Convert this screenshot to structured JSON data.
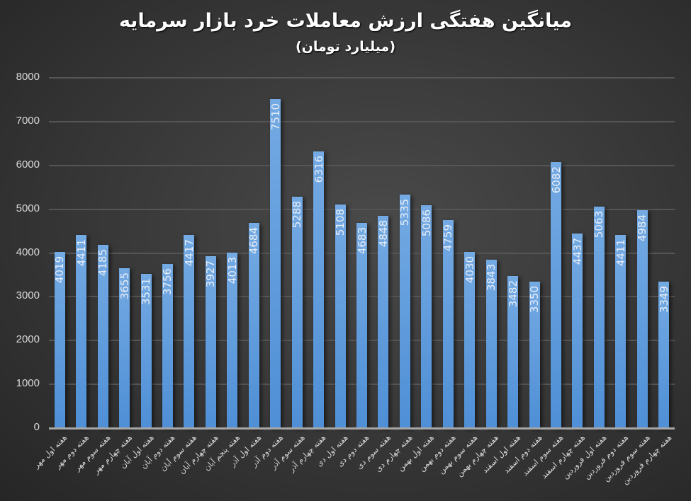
{
  "chart_data": {
    "type": "bar",
    "title": "میانگین هفتگی ارزش معاملات خرد بازار سرمایه",
    "subtitle": "(میلیارد تومان)",
    "xlabel": "",
    "ylabel": "",
    "ylim": [
      0,
      8000
    ],
    "yticks": [
      0,
      1000,
      2000,
      3000,
      4000,
      5000,
      6000,
      7000,
      8000
    ],
    "grid": true,
    "legend": "none",
    "data_labels": "inside-end-rotated",
    "bar_color": "#5b9bd5",
    "background_color": "#333333",
    "categories": [
      "هفته اول مهر",
      "هفته دوم مهر",
      "هفته سوم مهر",
      "هفته چهارم مهر",
      "هفته اول آبان",
      "هفته دوم آبان",
      "هفته سوم آبان",
      "هفته چهارم آبان",
      "هفته پنجم آبان",
      "هفته اول آذر",
      "هفته دوم آذر",
      "هفته سوم آذر",
      "هفته چهارم آذر",
      "هفته اول دی",
      "هفته دوم دی",
      "هفته سوم دی",
      "هفته چهارم دی",
      "هفته اول بهمن",
      "هفته دوم بهمن",
      "هفته سوم بهمن",
      "هفته چهارم بهمن",
      "هفته اول اسفند",
      "هفته دوم اسفند",
      "هفته سوم اسفند",
      "هفته چهارم اسفند",
      "هفته اول فروردین",
      "هفته دوم فروردین",
      "هفته سوم فروردین",
      "هفته چهارم فروردین"
    ],
    "values": [
      4019,
      4411,
      4185,
      3655,
      3531,
      3756,
      4417,
      3927,
      4013,
      4684,
      7510,
      5288,
      6316,
      5108,
      4683,
      4848,
      5335,
      5086,
      4759,
      4030,
      3843,
      3482,
      3350,
      6082,
      4437,
      5063,
      4411,
      4984,
      3349
    ]
  }
}
